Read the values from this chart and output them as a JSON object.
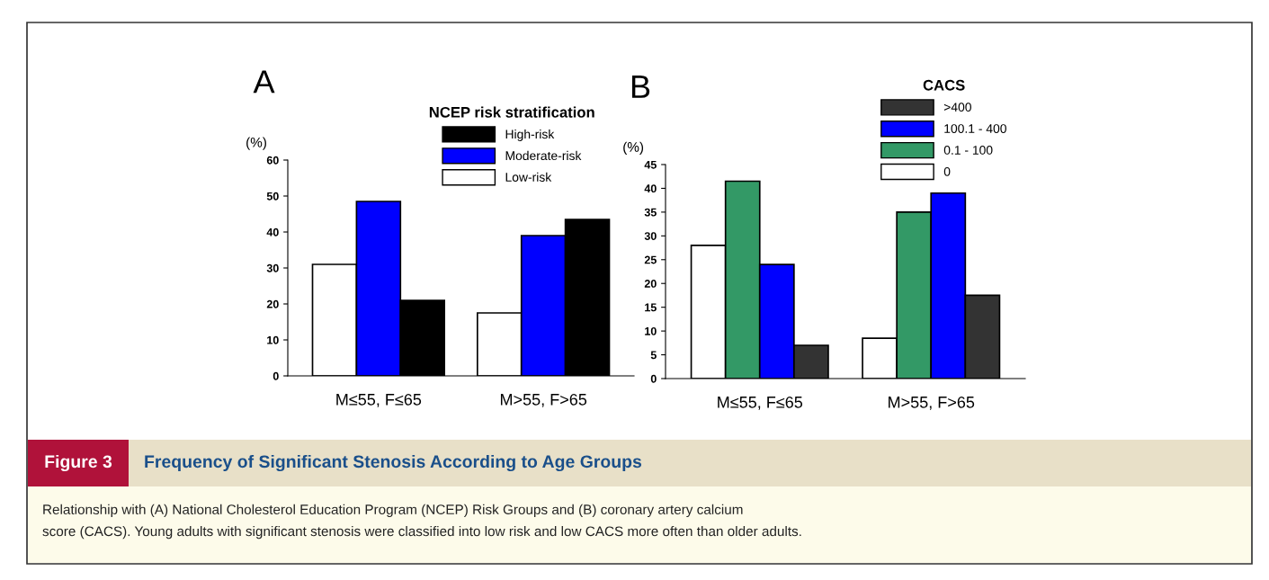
{
  "chart_data": [
    {
      "type": "bar",
      "title": "A",
      "ylabel": "(%)",
      "legend_title": "NCEP risk stratification",
      "categories": [
        "M≤55, F≤65",
        "M>55, F>65"
      ],
      "ylim": [
        0,
        60
      ],
      "yticks": [
        0,
        10,
        20,
        30,
        40,
        50,
        60
      ],
      "grid": false,
      "legend": "top right",
      "series": [
        {
          "name": "Low-risk",
          "color": "#ffffff",
          "values": [
            31,
            17.5
          ]
        },
        {
          "name": "Moderate-risk",
          "color": "#0000ff",
          "values": [
            48.5,
            39
          ]
        },
        {
          "name": "High-risk",
          "color": "#000000",
          "values": [
            21,
            43.5
          ]
        }
      ],
      "annotations": [
        "Figure 3",
        "Frequency of Significant Stenosis According to Age Groups",
        "Relationship with (A) National Cholesterol Education Program (NCEP) Risk Groups and (B) coronary artery calcium\nscore (CACS). Young adults with significant stenosis were classified into low risk and low CACS more often than older adults."
      ]
    },
    {
      "type": "bar",
      "title": "B",
      "ylabel": "(%)",
      "legend_title": "CACS",
      "categories": [
        "M≤55, F≤65",
        "M>55, F>65"
      ],
      "ylim": [
        0,
        45
      ],
      "yticks": [
        0,
        5,
        10,
        15,
        20,
        25,
        30,
        35,
        40,
        45
      ],
      "grid": false,
      "legend": "top right",
      "series": [
        {
          "name": "0",
          "color": "#ffffff",
          "values": [
            28,
            8.5
          ]
        },
        {
          "name": "0.1 - 100",
          "color": "#339966",
          "values": [
            41.5,
            35
          ]
        },
        {
          "name": "100.1 - 400",
          "color": "#0000ff",
          "values": [
            24,
            39
          ]
        },
        {
          "name": ">400",
          "color": "#333333",
          "values": [
            7,
            17.5
          ]
        }
      ]
    }
  ]
}
